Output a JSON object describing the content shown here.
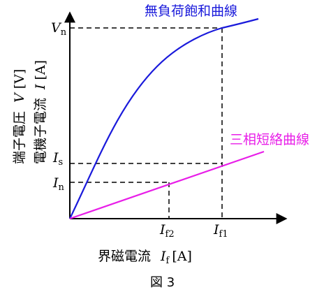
{
  "curves": {
    "no_load": {
      "label": "無負荷飽和曲線",
      "color": "#1a1adb"
    },
    "short_circuit": {
      "label": "三相短絡曲線",
      "color": "#e81ee8"
    }
  },
  "y_axis": {
    "label_line1": "端子電圧",
    "label_line1_sym": "V",
    "label_line1_unit": "[V]",
    "label_line2": "電機子電流",
    "label_line2_sym": "I",
    "label_line2_unit": "[A]"
  },
  "x_axis": {
    "label": "界磁電流",
    "sym": "I",
    "sub": "f",
    "unit": "[A]"
  },
  "marks": {
    "Vn": {
      "sym": "V",
      "sub": "n"
    },
    "Is": {
      "sym": "I",
      "sub": "s"
    },
    "In": {
      "sym": "I",
      "sub": "n"
    },
    "If2": {
      "sym": "I",
      "sub": "f2"
    },
    "If1": {
      "sym": "I",
      "sub": "f1"
    }
  },
  "caption": "図 3",
  "colors": {
    "axis": "#000000",
    "dashed": "#000000"
  }
}
